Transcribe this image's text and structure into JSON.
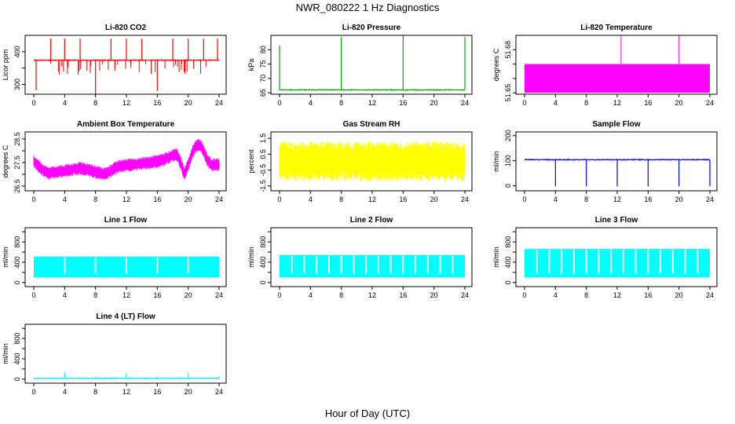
{
  "figure": {
    "title": "NWR_080222  1 Hz Diagnostics",
    "xlabel": "Hour of Day (UTC)"
  },
  "chart_data": [
    {
      "type": "line",
      "title": "Li-820 CO2",
      "ylabel": "Licor ppm",
      "color": "#ff0000",
      "xlim": [
        0,
        24
      ],
      "xticks": [
        0,
        4,
        8,
        12,
        16,
        20,
        24
      ],
      "ylim": [
        270,
        450
      ],
      "yticks": [
        300,
        350,
        400
      ],
      "ytick_labels": [
        "300",
        "",
        "400"
      ],
      "baseline": 374,
      "spikes": [
        {
          "x": 0.3,
          "y": 282
        },
        {
          "x": 2.2,
          "y": 440
        },
        {
          "x": 4.0,
          "y": 440
        },
        {
          "x": 6.0,
          "y": 440
        },
        {
          "x": 8.0,
          "y": 270
        },
        {
          "x": 10.0,
          "y": 440
        },
        {
          "x": 12.0,
          "y": 440
        },
        {
          "x": 14.0,
          "y": 440
        },
        {
          "x": 16.0,
          "y": 280
        },
        {
          "x": 18.0,
          "y": 440
        },
        {
          "x": 20.0,
          "y": 440
        },
        {
          "x": 22.0,
          "y": 440
        },
        {
          "x": 23.8,
          "y": 440
        }
      ]
    },
    {
      "type": "line",
      "title": "Li-820 Pressure",
      "ylabel": "kPa",
      "color": "#00aa00",
      "xlim": [
        0,
        24
      ],
      "xticks": [
        0,
        4,
        8,
        12,
        16,
        20,
        24
      ],
      "ylim": [
        64.5,
        85
      ],
      "yticks": [
        65,
        70,
        75,
        80
      ],
      "ytick_labels": [
        "65",
        "70",
        "75",
        "80"
      ],
      "baseline": 66.0,
      "spikes": [
        {
          "x": 0.0,
          "y": 81.5
        },
        {
          "x": 8.0,
          "y": 84.5
        },
        {
          "x": 16.0,
          "y": 85
        },
        {
          "x": 24.0,
          "y": 84.5
        }
      ]
    },
    {
      "type": "band",
      "title": "Li-820 Temperature",
      "ylabel": "degrees C",
      "color": "#ff00ff",
      "xlim": [
        0,
        24
      ],
      "xticks": [
        0,
        4,
        8,
        12,
        16,
        20,
        24
      ],
      "ylim": [
        51.649,
        51.69
      ],
      "yticks": [
        51.65,
        51.66,
        51.67,
        51.68
      ],
      "ytick_labels": [
        "51.65",
        "",
        "",
        "51.68"
      ],
      "band": [
        51.65,
        51.67
      ],
      "spikes": [
        {
          "x": 12.5,
          "y": 51.69
        },
        {
          "x": 20.0,
          "y": 51.69
        }
      ]
    },
    {
      "type": "band",
      "title": "Ambient Box Temperature",
      "ylabel": "degrees C",
      "color": "#ff00ff",
      "xlim": [
        0,
        24
      ],
      "xticks": [
        0,
        4,
        8,
        12,
        16,
        20,
        24
      ],
      "ylim": [
        26.3,
        28.8
      ],
      "yticks": [
        26.5,
        27.0,
        27.5,
        28.0,
        28.5
      ],
      "ytick_labels": [
        "26.5",
        "",
        "27.5",
        "",
        "28.5"
      ],
      "x": [
        0,
        0.5,
        1,
        2,
        3,
        4,
        5,
        6,
        7,
        8,
        9,
        10,
        11,
        12,
        13,
        14,
        15,
        16,
        17,
        18,
        18.5,
        19,
        19.5,
        20,
        20.5,
        21,
        21.5,
        22,
        22.5,
        23,
        24
      ],
      "mean": [
        27.55,
        27.4,
        27.2,
        27.05,
        27.1,
        27.15,
        27.2,
        27.25,
        27.2,
        27.1,
        27.0,
        27.15,
        27.35,
        27.4,
        27.4,
        27.45,
        27.5,
        27.55,
        27.65,
        27.8,
        27.85,
        27.5,
        27.0,
        27.4,
        27.9,
        28.2,
        28.25,
        28.0,
        27.6,
        27.4,
        27.4
      ],
      "halfwidth": 0.28
    },
    {
      "type": "band",
      "title": "Gas Stream RH",
      "ylabel": "percent",
      "color": "#ffff00",
      "xlim": [
        0,
        24
      ],
      "xticks": [
        0,
        4,
        8,
        12,
        16,
        20,
        24
      ],
      "ylim": [
        -1.8,
        1.9
      ],
      "yticks": [
        -1.5,
        -0.5,
        0.5,
        1.5
      ],
      "ytick_labels": [
        "-1.5",
        "-0.5",
        "0.5",
        "1.5"
      ],
      "band": [
        -1.2,
        1.3
      ]
    },
    {
      "type": "line",
      "title": "Sample Flow",
      "ylabel": "ml/min",
      "color": "#0000ff",
      "xlim": [
        0,
        24
      ],
      "xticks": [
        0,
        4,
        8,
        12,
        16,
        20,
        24
      ],
      "ylim": [
        -20,
        215
      ],
      "yticks": [
        0,
        100,
        200
      ],
      "ytick_labels": [
        "0",
        "100",
        "200"
      ],
      "baseline": 104,
      "spikes": [
        {
          "x": 4.0,
          "y": -2
        },
        {
          "x": 8.0,
          "y": -2
        },
        {
          "x": 12.0,
          "y": -2
        },
        {
          "x": 16.0,
          "y": -2
        },
        {
          "x": 20.0,
          "y": -2
        },
        {
          "x": 24.0,
          "y": -2
        }
      ]
    },
    {
      "type": "band",
      "title": "Line 1 Flow",
      "ylabel": "ml/min",
      "color": "#00ffff",
      "xlim": [
        0,
        24
      ],
      "xticks": [
        0,
        4,
        8,
        12,
        16,
        20,
        24
      ],
      "ylim": [
        -80,
        1080
      ],
      "yticks": [
        0,
        200,
        400,
        600,
        800,
        1000
      ],
      "ytick_labels": [
        "0",
        "",
        "400",
        "",
        "800",
        ""
      ],
      "band": [
        100,
        510
      ],
      "gaps": [
        4.0,
        8.0,
        12.0,
        16.0,
        20.0
      ]
    },
    {
      "type": "band",
      "title": "Line 2 Flow",
      "ylabel": "ml/min",
      "color": "#00ffff",
      "xlim": [
        0,
        24
      ],
      "xticks": [
        0,
        4,
        8,
        12,
        16,
        20,
        24
      ],
      "ylim": [
        -80,
        1080
      ],
      "yticks": [
        0,
        200,
        400,
        600,
        800,
        1000
      ],
      "ytick_labels": [
        "0",
        "",
        "400",
        "",
        "800",
        ""
      ],
      "band": [
        100,
        540
      ],
      "gaps": [
        1.6,
        3.2,
        4.8,
        6.4,
        8.0,
        9.6,
        11.2,
        12.8,
        14.4,
        16.0,
        17.6,
        19.2,
        20.8,
        22.4
      ]
    },
    {
      "type": "band",
      "title": "Line 3 Flow",
      "ylabel": "ml/min",
      "color": "#00ffff",
      "xlim": [
        0,
        24
      ],
      "xticks": [
        0,
        4,
        8,
        12,
        16,
        20,
        24
      ],
      "ylim": [
        -80,
        1080
      ],
      "yticks": [
        0,
        200,
        400,
        600,
        800,
        1000
      ],
      "ytick_labels": [
        "0",
        "",
        "400",
        "",
        "800",
        ""
      ],
      "band": [
        100,
        660
      ],
      "gaps": [
        1.6,
        3.2,
        4.8,
        6.4,
        8.0,
        9.6,
        11.2,
        12.8,
        14.4,
        16.0,
        17.6,
        19.2,
        20.8,
        22.4
      ]
    },
    {
      "type": "line",
      "title": "Line 4 (LT) Flow",
      "ylabel": "ml/min",
      "color": "#00ffff",
      "xlim": [
        0,
        24
      ],
      "xticks": [
        0,
        4,
        8,
        12,
        16,
        20,
        24
      ],
      "ylim": [
        -80,
        1080
      ],
      "yticks": [
        0,
        200,
        400,
        600,
        800,
        1000
      ],
      "ytick_labels": [
        "0",
        "",
        "400",
        "",
        "800",
        ""
      ],
      "baseline": 15,
      "spikes": [
        {
          "x": 4.0,
          "y": 130
        },
        {
          "x": 8.0,
          "y": 60
        },
        {
          "x": 12.0,
          "y": 120
        },
        {
          "x": 16.0,
          "y": 50
        },
        {
          "x": 20.0,
          "y": 130
        },
        {
          "x": 24.0,
          "y": 60
        }
      ]
    }
  ]
}
